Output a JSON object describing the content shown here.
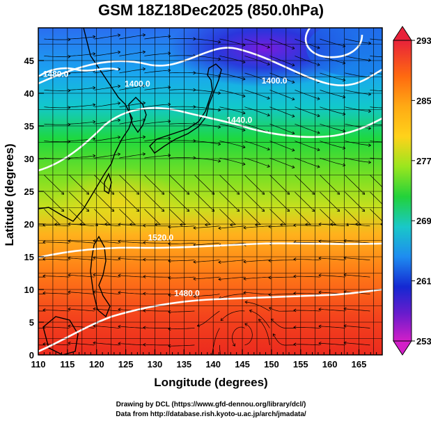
{
  "title": "GSM 18Z18Dec2025 (850.0hPa)",
  "x_axis": {
    "label": "Longitude (degrees)",
    "ticks": [
      "110",
      "115",
      "120",
      "125",
      "130",
      "135",
      "140",
      "145",
      "150",
      "155",
      "160",
      "165"
    ],
    "range": [
      110,
      169
    ]
  },
  "y_axis": {
    "label": "Latitude  (degrees)",
    "ticks": [
      "0",
      "5",
      "10",
      "15",
      "20",
      "25",
      "30",
      "35",
      "40",
      "45"
    ],
    "range": [
      0,
      50
    ]
  },
  "colorbar": {
    "ticks": [
      "293",
      "285",
      "277",
      "269",
      "261",
      "253"
    ],
    "range": [
      253,
      293
    ],
    "colors": [
      "#e8223a",
      "#ff8a00",
      "#ffd21a",
      "#9ae61e",
      "#22d23a",
      "#19c8c8",
      "#1e8cf0",
      "#1428d2",
      "#6a1ccc",
      "#d21ec8"
    ]
  },
  "contour_labels": [
    {
      "text": "1400.0",
      "lon": 150.5,
      "lat": 41.5
    },
    {
      "text": "1440.0",
      "lon": 144.5,
      "lat": 35.5
    },
    {
      "text": "1480.0",
      "lon": 113.0,
      "lat": 42.5
    },
    {
      "text": "1480.0",
      "lon": 135.5,
      "lat": 9.0
    },
    {
      "text": "1520.0",
      "lon": 131.0,
      "lat": 17.5
    },
    {
      "text": "1400.0",
      "lon": 127.0,
      "lat": 41.0
    }
  ],
  "credits": {
    "line1": "Drawing by DCL (https://www.gfd-dennou.org/library/dcl/)",
    "line2": "Data from http://database.rish.kyoto-u.ac.jp/arch/jmadata/"
  }
}
